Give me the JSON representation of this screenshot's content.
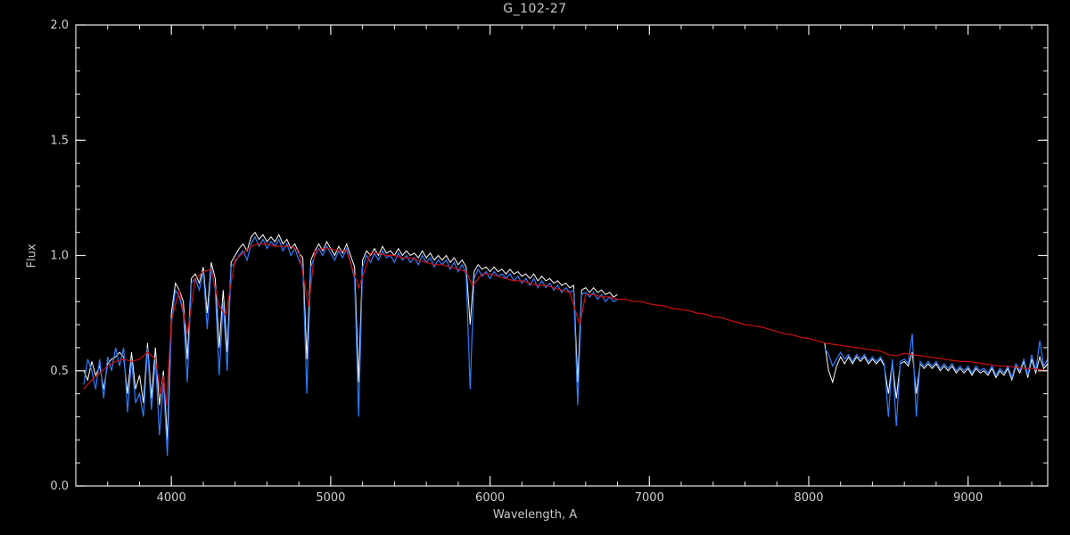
{
  "page": {
    "background": "#000000"
  },
  "chart_data": {
    "type": "line",
    "title": "G_102-27",
    "xlabel": "Wavelength, A",
    "ylabel": "Flux",
    "xlim": [
      3400,
      9500
    ],
    "ylim": [
      0.0,
      2.0
    ],
    "xticks": [
      4000,
      5000,
      6000,
      7000,
      8000,
      9000
    ],
    "xtick_labels": [
      "4000",
      "5000",
      "6000",
      "7000",
      "8000",
      "9000"
    ],
    "yticks": [
      0.0,
      0.5,
      1.0,
      1.5,
      2.0
    ],
    "ytick_labels": [
      "0.0",
      "0.5",
      "1.0",
      "1.5",
      "2.0"
    ],
    "x_minor_step": 200,
    "y_minor_step": 0.1,
    "grid": false,
    "legend": null,
    "background": "#000000",
    "axis_color": "#e8e8e8",
    "text_color": "#cfcfcf",
    "series": [
      {
        "name": "observed-spectrum-raw-white",
        "color": "#ffffff",
        "width": 1,
        "segments": [
          {
            "x_start": 3450,
            "x_step": 25,
            "y": [
              0.5,
              0.46,
              0.54,
              0.48,
              0.52,
              0.42,
              0.53,
              0.55,
              0.56,
              0.58,
              0.56,
              0.4,
              0.58,
              0.42,
              0.48,
              0.36,
              0.62,
              0.38,
              0.6,
              0.35,
              0.5,
              0.2,
              0.75,
              0.88,
              0.85,
              0.8,
              0.55,
              0.9,
              0.92,
              0.88,
              0.95,
              0.75,
              0.97,
              0.9,
              0.6,
              0.85,
              0.58,
              0.97,
              1.0,
              1.03,
              1.05,
              1.02,
              1.08,
              1.1,
              1.07,
              1.09,
              1.06,
              1.08,
              1.06,
              1.09,
              1.05,
              1.07,
              1.03,
              1.05,
              1.01,
              0.99,
              0.55,
              0.98,
              1.02,
              1.05,
              1.02,
              1.06,
              1.03,
              1.0,
              1.04,
              1.01,
              1.05,
              1.0,
              0.95,
              0.45,
              0.98,
              1.02,
              1.0,
              1.03,
              1.0,
              1.04,
              1.01,
              1.02,
              1.0,
              1.03,
              1.0,
              1.02,
              1.0,
              1.01,
              0.99,
              1.02,
              0.99,
              1.01,
              0.98,
              1.0,
              0.98,
              1.0,
              0.97,
              0.99,
              0.96,
              0.98,
              0.95,
              0.7,
              0.93,
              0.96,
              0.94,
              0.95,
              0.93,
              0.95,
              0.93,
              0.94,
              0.92,
              0.94,
              0.92,
              0.93,
              0.91,
              0.92,
              0.9,
              0.92,
              0.89,
              0.91,
              0.89,
              0.9,
              0.88,
              0.89,
              0.87,
              0.88,
              0.86,
              0.87,
              0.45,
              0.85,
              0.86,
              0.84,
              0.86,
              0.84,
              0.85,
              0.83,
              0.84,
              0.82,
              0.83
            ]
          },
          {
            "x_start": 8100,
            "x_step": 25,
            "y": [
              0.62,
              0.5,
              0.45,
              0.52,
              0.56,
              0.53,
              0.56,
              0.53,
              0.56,
              0.54,
              0.56,
              0.53,
              0.55,
              0.53,
              0.55,
              0.52,
              0.4,
              0.54,
              0.38,
              0.53,
              0.54,
              0.52,
              0.58,
              0.4,
              0.53,
              0.51,
              0.53,
              0.51,
              0.53,
              0.5,
              0.52,
              0.5,
              0.52,
              0.49,
              0.51,
              0.49,
              0.51,
              0.48,
              0.51,
              0.49,
              0.5,
              0.48,
              0.51,
              0.47,
              0.5,
              0.48,
              0.51,
              0.46,
              0.52,
              0.49,
              0.54,
              0.47,
              0.55,
              0.49,
              0.56,
              0.51,
              0.53
            ]
          }
        ]
      },
      {
        "name": "observed-spectrum-blue",
        "color": "#2f7dff",
        "width": 1.2,
        "segments": [
          {
            "x_start": 3450,
            "x_step": 25,
            "y": [
              0.44,
              0.55,
              0.5,
              0.42,
              0.55,
              0.38,
              0.56,
              0.5,
              0.6,
              0.52,
              0.6,
              0.32,
              0.55,
              0.36,
              0.4,
              0.3,
              0.6,
              0.33,
              0.55,
              0.22,
              0.45,
              0.13,
              0.7,
              0.85,
              0.82,
              0.75,
              0.45,
              0.88,
              0.9,
              0.85,
              0.93,
              0.68,
              0.95,
              0.85,
              0.48,
              0.8,
              0.5,
              0.95,
              0.97,
              1.0,
              1.02,
              0.98,
              1.05,
              1.08,
              1.04,
              1.07,
              1.03,
              1.06,
              1.04,
              1.07,
              1.02,
              1.05,
              1.0,
              1.03,
              0.98,
              0.95,
              0.4,
              0.95,
              1.0,
              1.03,
              1.0,
              1.04,
              1.01,
              0.98,
              1.02,
              0.99,
              1.03,
              0.97,
              0.9,
              0.3,
              0.95,
              1.0,
              0.97,
              1.01,
              0.98,
              1.02,
              0.99,
              1.0,
              0.97,
              1.01,
              0.98,
              1.0,
              0.97,
              0.99,
              0.96,
              1.0,
              0.97,
              0.99,
              0.95,
              0.98,
              0.96,
              0.98,
              0.94,
              0.97,
              0.93,
              0.96,
              0.92,
              0.42,
              0.9,
              0.94,
              0.91,
              0.93,
              0.9,
              0.93,
              0.91,
              0.92,
              0.9,
              0.92,
              0.89,
              0.91,
              0.88,
              0.9,
              0.87,
              0.9,
              0.86,
              0.89,
              0.86,
              0.88,
              0.85,
              0.87,
              0.84,
              0.86,
              0.84,
              0.85,
              0.35,
              0.83,
              0.84,
              0.82,
              0.84,
              0.81,
              0.83,
              0.8,
              0.82,
              0.8,
              0.81
            ]
          },
          {
            "x_start": 8100,
            "x_step": 25,
            "y": [
              0.6,
              0.57,
              0.52,
              0.55,
              0.58,
              0.55,
              0.57,
              0.54,
              0.57,
              0.55,
              0.57,
              0.54,
              0.56,
              0.54,
              0.56,
              0.53,
              0.3,
              0.55,
              0.26,
              0.54,
              0.55,
              0.53,
              0.66,
              0.3,
              0.54,
              0.52,
              0.54,
              0.52,
              0.54,
              0.51,
              0.53,
              0.51,
              0.53,
              0.5,
              0.52,
              0.5,
              0.52,
              0.49,
              0.52,
              0.5,
              0.51,
              0.49,
              0.52,
              0.48,
              0.51,
              0.49,
              0.52,
              0.47,
              0.53,
              0.5,
              0.55,
              0.48,
              0.57,
              0.5,
              0.63,
              0.52,
              0.55
            ]
          }
        ]
      },
      {
        "name": "model-spectrum-red",
        "color": "#cc1111",
        "width": 1.2,
        "segments": [
          {
            "x": [
              3450,
              3500,
              3550,
              3600,
              3650,
              3700,
              3750,
              3800,
              3850,
              3900,
              3933,
              3950,
              3968,
              4000,
              4050,
              4100,
              4150,
              4200,
              4250,
              4300,
              4340,
              4400,
              4450,
              4500,
              4550,
              4600,
              4650,
              4700,
              4750,
              4800,
              4861,
              4900,
              4950,
              5000,
              5050,
              5100,
              5175,
              5250,
              5300,
              5350,
              5400,
              5450,
              5500,
              5550,
              5600,
              5650,
              5700,
              5750,
              5800,
              5850,
              5890,
              5950,
              6000,
              6050,
              6100,
              6150,
              6200,
              6250,
              6300,
              6350,
              6400,
              6450,
              6500,
              6563,
              6600,
              6650,
              6700,
              6750,
              6800,
              6850,
              6900,
              6950,
              7000,
              7050,
              7100,
              7150,
              7200,
              7250,
              7300,
              7350,
              7400,
              7450,
              7500,
              7550,
              7600,
              7650,
              7700,
              7750,
              7800,
              7850,
              7900,
              7950,
              8000,
              8050,
              8100,
              8150,
              8200,
              8250,
              8300,
              8350,
              8400,
              8450,
              8500,
              8550,
              8600,
              8650,
              8700,
              8750,
              8800,
              8850,
              8900,
              8950,
              9000,
              9050,
              9100,
              9150,
              9200,
              9250,
              9300,
              9350,
              9400,
              9450,
              9500
            ],
            "y": [
              0.42,
              0.46,
              0.49,
              0.52,
              0.54,
              0.55,
              0.54,
              0.55,
              0.58,
              0.55,
              0.4,
              0.48,
              0.35,
              0.72,
              0.85,
              0.66,
              0.9,
              0.93,
              0.94,
              0.78,
              0.74,
              0.98,
              1.01,
              1.04,
              1.05,
              1.05,
              1.04,
              1.04,
              1.04,
              1.02,
              0.78,
              1.02,
              1.03,
              1.03,
              1.02,
              1.02,
              0.86,
              1.01,
              1.01,
              1.0,
              1.0,
              0.99,
              0.99,
              0.98,
              0.97,
              0.96,
              0.96,
              0.95,
              0.94,
              0.93,
              0.87,
              0.92,
              0.92,
              0.91,
              0.9,
              0.89,
              0.89,
              0.88,
              0.87,
              0.87,
              0.86,
              0.85,
              0.84,
              0.7,
              0.83,
              0.83,
              0.82,
              0.82,
              0.81,
              0.81,
              0.8,
              0.8,
              0.79,
              0.785,
              0.78,
              0.77,
              0.765,
              0.76,
              0.75,
              0.745,
              0.735,
              0.73,
              0.72,
              0.71,
              0.7,
              0.695,
              0.69,
              0.68,
              0.67,
              0.66,
              0.655,
              0.645,
              0.64,
              0.63,
              0.62,
              0.615,
              0.61,
              0.605,
              0.6,
              0.595,
              0.59,
              0.585,
              0.57,
              0.565,
              0.575,
              0.57,
              0.565,
              0.56,
              0.555,
              0.55,
              0.545,
              0.54,
              0.54,
              0.535,
              0.53,
              0.525,
              0.52,
              0.52,
              0.515,
              0.51,
              0.51,
              0.505,
              0.5
            ]
          }
        ]
      }
    ]
  }
}
